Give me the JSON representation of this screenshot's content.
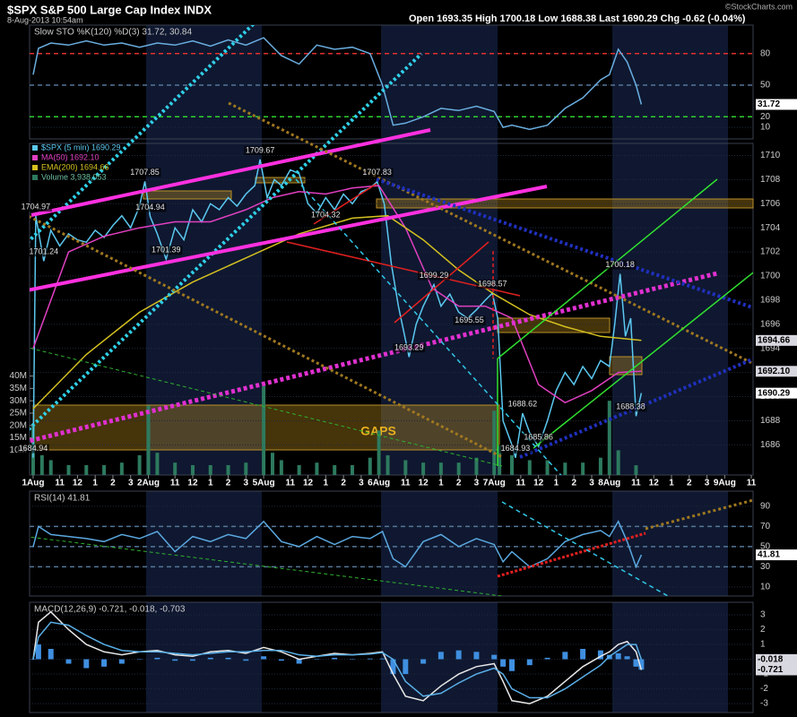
{
  "header": {
    "title": "$SPX S&P 500 Large Cap Index INDX",
    "date": "8-Aug-2013 10:54am",
    "quote": "Open 1693.35  High 1700.18  Low 1688.38  Last 1690.29  Chg -0.62 (-0.04%)",
    "source": "©StockCharts.com"
  },
  "chart_data": [
    {
      "type": "line",
      "title": "Slow STO %K(120) %D(3) 31.72, 30.84",
      "x": [
        0,
        0.3,
        1,
        2,
        3,
        4,
        5,
        6,
        7,
        8,
        9,
        10,
        11,
        12,
        13,
        14,
        15,
        16,
        17,
        18,
        19,
        19.7,
        20.3,
        21,
        22,
        23,
        24,
        25,
        26,
        26.5,
        27,
        28,
        29,
        30,
        31,
        32,
        32.5,
        33,
        33.5,
        34,
        34.3
      ],
      "series": [
        {
          "color": "#6aaee0",
          "end_label": "31.72",
          "values": [
            60,
            85,
            90,
            88,
            92,
            88,
            90,
            86,
            90,
            88,
            92,
            87,
            93,
            88,
            95,
            78,
            70,
            88,
            84,
            86,
            80,
            50,
            12,
            14,
            20,
            28,
            26,
            30,
            25,
            10,
            12,
            8,
            12,
            28,
            38,
            55,
            60,
            84,
            72,
            50,
            31.72
          ]
        }
      ],
      "reference_lines": [
        {
          "value": 80,
          "color": "#e03030"
        },
        {
          "value": 50,
          "color": "#557799"
        },
        {
          "value": 20,
          "color": "#30d030"
        }
      ],
      "ylim": [
        -1,
        107
      ],
      "yticks": [
        10,
        20,
        50,
        80
      ]
    },
    {
      "type": "line",
      "x": [
        0,
        0.15,
        0.6,
        1,
        1.5,
        2,
        2.5,
        3,
        3.5,
        4,
        4.5,
        5,
        5.5,
        6,
        6.3,
        6.6,
        7,
        7.5,
        8,
        8.5,
        9,
        9.5,
        10,
        10.5,
        11,
        11.5,
        12,
        12.5,
        12.8,
        13.2,
        13.6,
        14,
        14.5,
        15,
        15.5,
        16,
        16.5,
        17,
        17.5,
        18,
        18.5,
        19,
        19.4,
        19.8,
        20.2,
        20.6,
        21.2,
        21.6,
        22,
        22.6,
        23,
        23.5,
        24,
        24.5,
        25,
        25.5,
        25.9,
        26.2,
        26.5,
        27,
        27.2,
        27.6,
        28,
        28.5,
        29,
        29.5,
        30,
        30.5,
        31,
        31.5,
        32,
        32.5,
        32.8,
        33.1,
        33.4,
        33.7,
        34,
        34.3
      ],
      "series": [
        {
          "name": "$SPX (5 min) 1690.29",
          "color": "#5bc8f0",
          "end_label": "1690.29",
          "values": [
            1684.94,
            1704.97,
            1701.24,
            1703.8,
            1702.5,
            1703.5,
            1703,
            1702.8,
            1703.8,
            1703.2,
            1704.2,
            1705,
            1704,
            1705.8,
            1707.85,
            1704.94,
            1703.5,
            1701.39,
            1704,
            1703,
            1705.5,
            1704.5,
            1706,
            1705.5,
            1706.5,
            1705.8,
            1706.8,
            1707.5,
            1709.67,
            1706.5,
            1708,
            1707.5,
            1708.8,
            1708.5,
            1706,
            1705.2,
            1706.5,
            1705.5,
            1706.8,
            1706,
            1707,
            1707.3,
            1707.83,
            1706,
            1701,
            1697.5,
            1693.29,
            1696,
            1697.5,
            1699.29,
            1697.5,
            1698.5,
            1697,
            1696.5,
            1697.2,
            1698,
            1698.57,
            1696.5,
            1688,
            1686,
            1684.93,
            1688.62,
            1687,
            1685.86,
            1688,
            1690.5,
            1692,
            1691,
            1692.5,
            1691.5,
            1693,
            1692.5,
            1696,
            1700.18,
            1695,
            1696.5,
            1688.38,
            1690.29
          ]
        },
        {
          "name": "MA(50) 1692.10",
          "color": "#e040c0",
          "end_label": "1692.10",
          "x": [
            0,
            2,
            4,
            6,
            8,
            10,
            12,
            13.5,
            15,
            16.5,
            18,
            19.5,
            21,
            22.5,
            24,
            25.5,
            27,
            28.5,
            30,
            31.5,
            33,
            34.3
          ],
          "values": [
            1694,
            1702,
            1703.3,
            1704,
            1704.5,
            1704.5,
            1705.5,
            1706.5,
            1707,
            1706.8,
            1707.3,
            1707.5,
            1704,
            1699,
            1697.5,
            1697.5,
            1696.5,
            1691,
            1689.5,
            1690.5,
            1692,
            1692.1
          ]
        },
        {
          "name": "EMA(200) 1694.66",
          "color": "#d4c020",
          "end_label": "1694.66",
          "x": [
            0,
            3,
            6,
            9,
            12,
            15,
            18,
            20,
            22,
            24,
            26,
            28,
            30,
            32,
            34.3
          ],
          "values": [
            1689,
            1693.5,
            1697,
            1699.5,
            1701.5,
            1703.5,
            1704.8,
            1705,
            1703,
            1700.5,
            1698.5,
            1696.8,
            1695.8,
            1695,
            1694.66
          ]
        }
      ],
      "volume": {
        "name": "Volume 3,938,053",
        "color": "#2d7a5e",
        "x": [
          0,
          0.5,
          1,
          2,
          3,
          4,
          5,
          6,
          6.5,
          7,
          8,
          9,
          10,
          11,
          12,
          13,
          13.5,
          14,
          15,
          16,
          17,
          18,
          19,
          19.5,
          20,
          21,
          22,
          23,
          24,
          25,
          26,
          26.3,
          27,
          28,
          29,
          30,
          31,
          32,
          32.5,
          33,
          34
        ],
        "values": [
          20000000,
          8000000,
          6000000,
          4000000,
          4000000,
          4000000,
          5000000,
          8000000,
          28000000,
          9000000,
          5000000,
          4000000,
          4000000,
          4000000,
          5000000,
          36000000,
          9000000,
          6000000,
          4000000,
          5000000,
          4000000,
          4000000,
          7000000,
          18000000,
          8000000,
          6000000,
          5000000,
          5000000,
          5000000,
          7000000,
          26000000,
          12000000,
          8000000,
          6000000,
          6000000,
          5000000,
          5000000,
          7000000,
          30000000,
          10000000,
          3938053
        ],
        "ylim": [
          0,
          134000000
        ],
        "yticks": [
          {
            "value": 10000000,
            "label": "10M"
          },
          {
            "value": 15000000,
            "label": "15M"
          },
          {
            "value": 20000000,
            "label": "20M"
          },
          {
            "value": 25000000,
            "label": "25M"
          },
          {
            "value": 30000000,
            "label": "30M"
          },
          {
            "value": 35000000,
            "label": "35M"
          },
          {
            "value": 40000000,
            "label": "40M"
          }
        ]
      },
      "annotations": [
        {
          "x": 0.15,
          "y": 1704.97,
          "label": "1704.97"
        },
        {
          "x": 0.6,
          "y": 1701.24,
          "label": "1701.24"
        },
        {
          "x": 6.3,
          "y": 1707.85,
          "label": "1707.85"
        },
        {
          "x": 6.6,
          "y": 1704.94,
          "label": "1704.94"
        },
        {
          "x": 7.5,
          "y": 1701.39,
          "label": "1701.39"
        },
        {
          "x": 12.8,
          "y": 1709.67,
          "label": "1709.67"
        },
        {
          "x": 16.5,
          "y": 1704.32,
          "label": "1704.32"
        },
        {
          "x": 19.4,
          "y": 1707.83,
          "label": "1707.83"
        },
        {
          "x": 21.2,
          "y": 1693.29,
          "label": "1693.29"
        },
        {
          "x": 22.6,
          "y": 1699.29,
          "label": "1699.29"
        },
        {
          "x": 24.6,
          "y": 1695.55,
          "label": "1695.55"
        },
        {
          "x": 25.9,
          "y": 1698.57,
          "label": "1698.57"
        },
        {
          "x": 27.6,
          "y": 1688.62,
          "label": "1688.62"
        },
        {
          "x": 27.2,
          "y": 1684.93,
          "label": "1684.93"
        },
        {
          "x": 28.5,
          "y": 1685.86,
          "label": "1685.86"
        },
        {
          "x": 33.1,
          "y": 1700.18,
          "label": "1700.18"
        },
        {
          "x": 33.7,
          "y": 1688.38,
          "label": "1688.38"
        },
        {
          "x": 0,
          "y": 1684.94,
          "label": "1684.94"
        }
      ],
      "gap_note": "GAPS",
      "ylim": [
        1683.5,
        1711
      ],
      "yticks": [
        1686,
        1688,
        1690,
        1692,
        1694,
        1696,
        1698,
        1700,
        1702,
        1704,
        1706,
        1708,
        1710
      ],
      "xlim": [
        -0.2,
        40.6
      ],
      "xticks": [
        {
          "value": 0,
          "label": "1Aug"
        },
        {
          "value": 1.5,
          "label": "11"
        },
        {
          "value": 2.5,
          "label": "12"
        },
        {
          "value": 3.5,
          "label": "1"
        },
        {
          "value": 4.5,
          "label": "2"
        },
        {
          "value": 5.5,
          "label": "3"
        },
        {
          "value": 6.5,
          "label": "2Aug"
        },
        {
          "value": 8,
          "label": "11"
        },
        {
          "value": 9,
          "label": "12"
        },
        {
          "value": 10,
          "label": "1"
        },
        {
          "value": 11,
          "label": "2"
        },
        {
          "value": 12,
          "label": "3"
        },
        {
          "value": 13,
          "label": "5Aug"
        },
        {
          "value": 14.5,
          "label": "11"
        },
        {
          "value": 15.5,
          "label": "12"
        },
        {
          "value": 16.5,
          "label": "1"
        },
        {
          "value": 17.5,
          "label": "2"
        },
        {
          "value": 18.5,
          "label": "3"
        },
        {
          "value": 19.5,
          "label": "6Aug"
        },
        {
          "value": 21,
          "label": "11"
        },
        {
          "value": 22,
          "label": "12"
        },
        {
          "value": 23,
          "label": "1"
        },
        {
          "value": 24,
          "label": "2"
        },
        {
          "value": 25,
          "label": "3"
        },
        {
          "value": 26,
          "label": "7Aug"
        },
        {
          "value": 27.5,
          "label": "11"
        },
        {
          "value": 28.5,
          "label": "12"
        },
        {
          "value": 29.5,
          "label": "1"
        },
        {
          "value": 30.5,
          "label": "2"
        },
        {
          "value": 31.5,
          "label": "3"
        },
        {
          "value": 32.5,
          "label": "8Aug"
        },
        {
          "value": 34,
          "label": "11"
        },
        {
          "value": 35,
          "label": "12"
        },
        {
          "value": 36,
          "label": "1"
        },
        {
          "value": 37,
          "label": "2"
        },
        {
          "value": 38,
          "label": "3"
        },
        {
          "value": 39,
          "label": "9Aug"
        },
        {
          "value": 40.5,
          "label": "11"
        }
      ]
    },
    {
      "type": "line",
      "title": "RSI(14) 41.81",
      "x": [
        0,
        0.3,
        1,
        2,
        3,
        4,
        5,
        6,
        7,
        8,
        9,
        10,
        11,
        12,
        13,
        14,
        15,
        16,
        17,
        18,
        19,
        19.7,
        20.3,
        21,
        22,
        23,
        24,
        25,
        26,
        26.5,
        27,
        28,
        29,
        30,
        31,
        32,
        32.5,
        33,
        33.5,
        34,
        34.3
      ],
      "series": [
        {
          "color": "#5aa8e0",
          "end_label": "41.81",
          "values": [
            50,
            70,
            62,
            60,
            58,
            55,
            62,
            58,
            65,
            45,
            60,
            55,
            62,
            58,
            75,
            55,
            50,
            60,
            52,
            60,
            58,
            65,
            38,
            30,
            55,
            62,
            50,
            58,
            52,
            35,
            45,
            30,
            38,
            55,
            62,
            66,
            60,
            75,
            55,
            30,
            41.81
          ]
        }
      ],
      "reference_lines": [
        {
          "value": 70,
          "color": "#557799"
        },
        {
          "value": 50,
          "color": "#557799"
        },
        {
          "value": 30,
          "color": "#557799"
        }
      ],
      "ylim": [
        1,
        105
      ],
      "yticks": [
        10,
        30,
        50,
        70,
        90
      ]
    },
    {
      "type": "line",
      "title": "MACD(12,26,9) -0.721, -0.018, -0.703",
      "x": [
        0,
        0.3,
        1,
        2,
        3,
        4,
        5,
        6,
        7,
        8,
        9,
        10,
        11,
        12,
        13,
        14,
        15,
        16,
        17,
        18,
        19,
        19.7,
        20.3,
        21,
        22,
        23,
        24,
        25,
        26,
        26.5,
        27,
        28,
        29,
        30,
        31,
        32,
        32.5,
        33,
        33.5,
        34,
        34.3
      ],
      "series": [
        {
          "kind": "bar",
          "color": "#3f8fe0",
          "values": [
            0,
            1,
            0.7,
            -0.3,
            -0.6,
            -0.5,
            -0.3,
            0,
            0.1,
            -0.1,
            -0.1,
            0.1,
            0.1,
            -0.1,
            0.2,
            -0.1,
            -0.3,
            0,
            0.1,
            0,
            0.05,
            0.05,
            -1,
            -1,
            -0.3,
            0.5,
            0.6,
            0.5,
            0.3,
            -0.5,
            -0.8,
            -0.4,
            0.1,
            0.5,
            0.7,
            0.6,
            0.3,
            0.4,
            0.2,
            -0.5,
            -0.703
          ]
        },
        {
          "color": "#e8e8e8",
          "end_label": "-0.721",
          "values": [
            0,
            2.5,
            3.2,
            2,
            1,
            0.5,
            0.3,
            0.5,
            0.6,
            0.3,
            0.2,
            0.5,
            0.6,
            0.4,
            0.8,
            0.5,
            0,
            0.2,
            0.4,
            0.3,
            0.4,
            0.5,
            -1,
            -2.5,
            -2.8,
            -1.8,
            -1,
            -0.5,
            -0.3,
            -1.5,
            -2.8,
            -3,
            -2.5,
            -1.5,
            -0.5,
            0.2,
            0.5,
            1,
            1.2,
            0.5,
            -0.721
          ]
        },
        {
          "color": "#5ab0e8",
          "end_label": "-0.018",
          "values": [
            0,
            1.5,
            2.5,
            2.3,
            1.6,
            1,
            0.6,
            0.5,
            0.5,
            0.4,
            0.3,
            0.4,
            0.5,
            0.5,
            0.6,
            0.6,
            0.3,
            0.2,
            0.3,
            0.3,
            0.35,
            0.45,
            0,
            -1.5,
            -2.5,
            -2.3,
            -1.6,
            -1,
            -0.6,
            -1,
            -2,
            -2.6,
            -2.6,
            -2,
            -1.2,
            -0.4,
            0.2,
            0.6,
            1,
            1,
            -0.018
          ]
        }
      ],
      "ylim": [
        -3.6,
        3.85
      ],
      "yticks": [
        3,
        2,
        1,
        0,
        -1,
        -2,
        -3
      ]
    }
  ]
}
